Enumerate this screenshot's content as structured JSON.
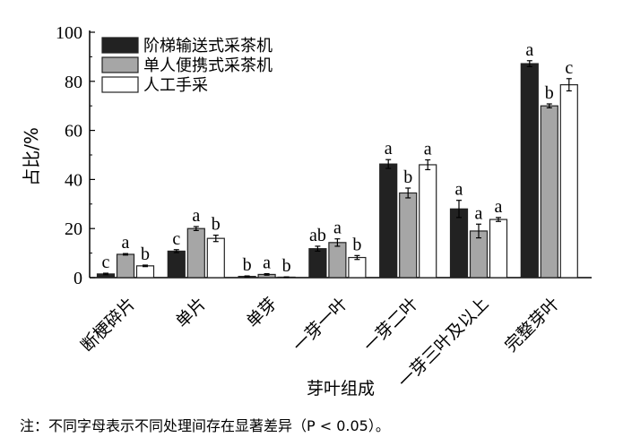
{
  "chart_data": {
    "type": "bar",
    "title": "",
    "xlabel": "芽叶组成",
    "ylabel": "占比/%",
    "ylim": [
      0,
      100
    ],
    "yticks": [
      0,
      20,
      40,
      60,
      80,
      100
    ],
    "categories": [
      "断梗碎片",
      "单片",
      "单芽",
      "一芽一叶",
      "一芽二叶",
      "一芽三叶及以上",
      "完整芽叶"
    ],
    "legend_position": "top-left",
    "series": [
      {
        "name": "阶梯输送式采茶机",
        "color": "#222222",
        "values": [
          1.5,
          10.8,
          0.5,
          11.8,
          46.3,
          28.0,
          87.2
        ],
        "errors": [
          0.3,
          0.6,
          0.2,
          1.0,
          1.8,
          3.5,
          1.2
        ],
        "letters": [
          "c",
          "c",
          "b",
          "ab",
          "a",
          "a",
          "a"
        ]
      },
      {
        "name": "单人便携式采茶机",
        "color": "#a6a6a6",
        "values": [
          9.5,
          20.0,
          1.3,
          14.3,
          34.5,
          19.0,
          70.0
        ],
        "errors": [
          0.3,
          0.8,
          0.3,
          1.5,
          2.0,
          2.8,
          0.8
        ],
        "letters": [
          "a",
          "a",
          "a",
          "a",
          "b",
          "a",
          "b"
        ]
      },
      {
        "name": "人工手采",
        "color": "#ffffff",
        "values": [
          4.8,
          16.0,
          0.2,
          8.2,
          46.0,
          23.7,
          78.6
        ],
        "errors": [
          0.3,
          1.3,
          0.1,
          0.8,
          2.0,
          0.8,
          2.5
        ],
        "letters": [
          "b",
          "b",
          "b",
          "b",
          "a",
          "a",
          "c"
        ]
      }
    ]
  },
  "note": "注：不同字母表示不同处理间存在显著差异（P < 0.05）。"
}
